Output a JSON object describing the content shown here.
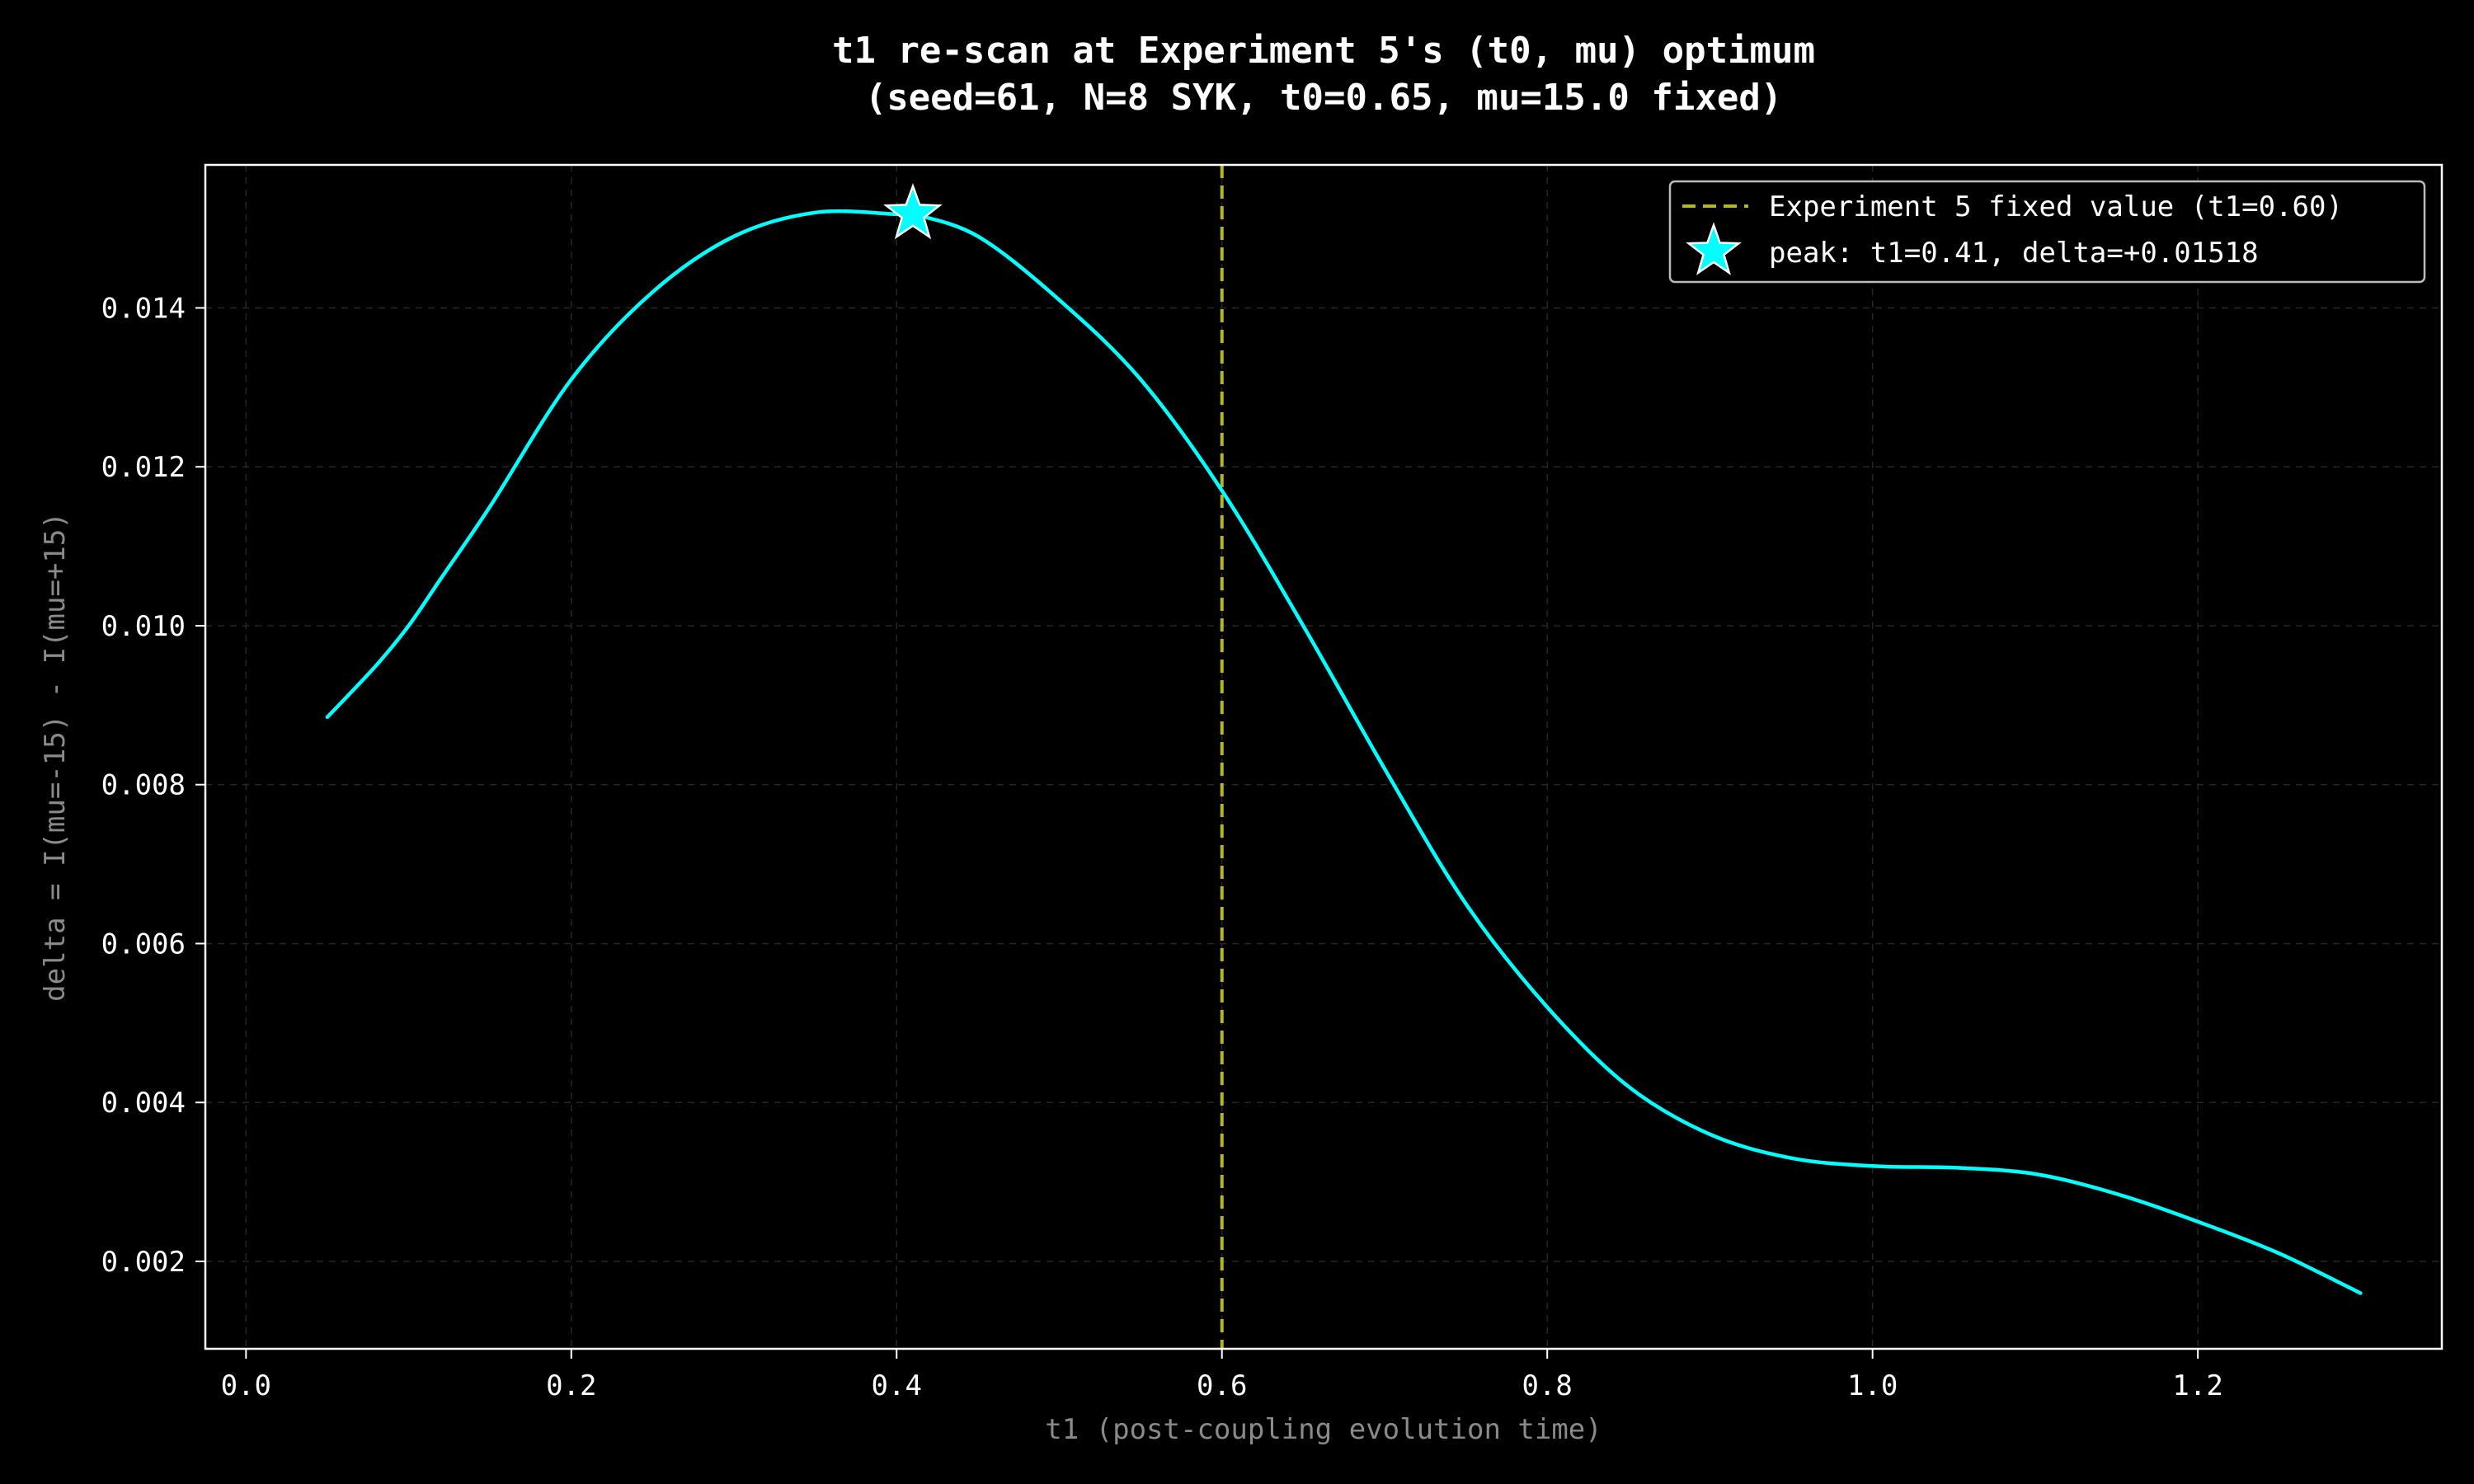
{
  "chart_data": {
    "type": "line",
    "title_line1": "t1 re-scan at Experiment 5's (t0, mu) optimum",
    "title_line2": "(seed=61, N=8 SYK, t0=0.65, mu=15.0 fixed)",
    "xlabel": "t1 (post-coupling evolution time)",
    "ylabel": "delta = I(mu=-15) - I(mu=+15)",
    "xlim": [
      -0.025,
      1.35
    ],
    "ylim": [
      0.0009,
      0.0158
    ],
    "xticks": [
      0.0,
      0.2,
      0.4,
      0.6,
      0.8,
      1.0,
      1.2
    ],
    "xtick_labels": [
      "0.0",
      "0.2",
      "0.4",
      "0.6",
      "0.8",
      "1.0",
      "1.2"
    ],
    "yticks": [
      0.002,
      0.004,
      0.006,
      0.008,
      0.01,
      0.012,
      0.014
    ],
    "ytick_labels": [
      "0.002",
      "0.004",
      "0.006",
      "0.008",
      "0.010",
      "0.012",
      "0.014"
    ],
    "grid": true,
    "legend_position": "top-right",
    "series": [
      {
        "color": "#00ffff",
        "x": [
          0.05,
          0.08,
          0.1,
          0.12,
          0.15,
          0.2,
          0.25,
          0.3,
          0.35,
          0.4,
          0.41,
          0.45,
          0.5,
          0.55,
          0.6,
          0.65,
          0.7,
          0.75,
          0.8,
          0.85,
          0.9,
          0.95,
          1.0,
          1.05,
          1.1,
          1.15,
          1.2,
          1.25,
          1.3
        ],
        "y": [
          0.00885,
          0.0095,
          0.01,
          0.0106,
          0.0115,
          0.0131,
          0.0142,
          0.0149,
          0.0152,
          0.01518,
          0.01518,
          0.0149,
          0.0141,
          0.0131,
          0.0117,
          0.01,
          0.0082,
          0.0065,
          0.0052,
          0.0042,
          0.0036,
          0.0033,
          0.0032,
          0.00318,
          0.0031,
          0.00285,
          0.0025,
          0.0021,
          0.0016
        ]
      }
    ],
    "vline": {
      "x": 0.6,
      "color": "#b5b52a",
      "label": "Experiment 5 fixed value (t1=0.60)"
    },
    "peak": {
      "x": 0.41,
      "y": 0.01518,
      "color": "#00ffff",
      "label": "peak: t1=0.41, delta=+0.01518"
    }
  }
}
